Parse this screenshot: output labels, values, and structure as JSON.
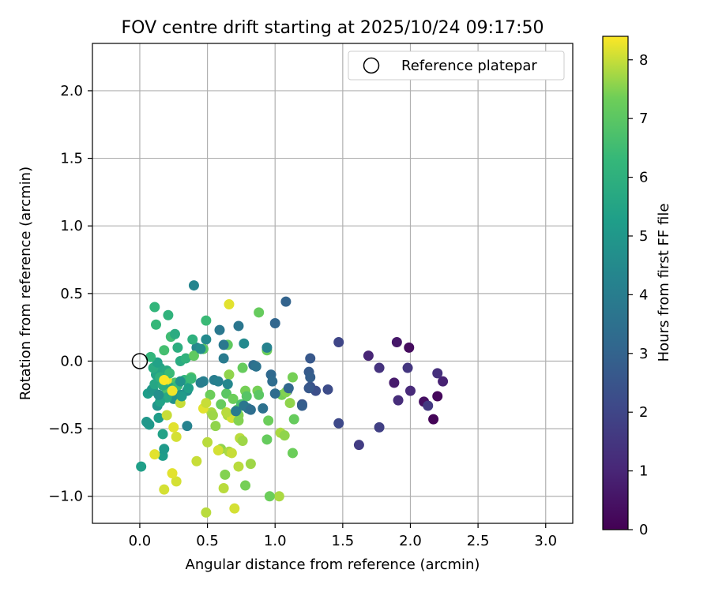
{
  "chart_data": {
    "type": "scatter",
    "title": "FOV centre drift starting at 2025/10/24 09:17:50",
    "xlabel": "Angular distance from reference (arcmin)",
    "ylabel": "Rotation from reference (arcmin)",
    "xlim": [
      -0.35,
      3.2
    ],
    "ylim": [
      -1.2,
      2.35
    ],
    "xticks": [
      0.0,
      0.5,
      1.0,
      1.5,
      2.0,
      2.5,
      3.0
    ],
    "xtick_labels": [
      "0.0",
      "0.5",
      "1.0",
      "1.5",
      "2.0",
      "2.5",
      "3.0"
    ],
    "yticks": [
      -1.0,
      -0.5,
      0.0,
      0.5,
      1.0,
      1.5,
      2.0
    ],
    "ytick_labels": [
      "−1.0",
      "−0.5",
      "0.0",
      "0.5",
      "1.0",
      "1.5",
      "2.0"
    ],
    "grid": true,
    "legend": {
      "position": "top-right",
      "entries": [
        "Reference platepar"
      ]
    },
    "reference_point": {
      "x": 0.0,
      "y": 0.0,
      "label": "Reference platepar"
    },
    "colorbar": {
      "label": "Hours from first FF file",
      "range": [
        0,
        8.4
      ],
      "ticks": [
        0,
        1,
        2,
        3,
        4,
        5,
        6,
        7,
        8
      ],
      "tick_labels": [
        "0",
        "1",
        "2",
        "3",
        "4",
        "5",
        "6",
        "7",
        "8"
      ],
      "colormap": "viridis"
    },
    "points": [
      {
        "x": 2.17,
        "y": -0.43,
        "h": 0.1
      },
      {
        "x": 2.2,
        "y": -0.26,
        "h": 0.2
      },
      {
        "x": 1.99,
        "y": 0.1,
        "h": 0.3
      },
      {
        "x": 2.1,
        "y": -0.3,
        "h": 0.4
      },
      {
        "x": 1.9,
        "y": 0.14,
        "h": 0.6
      },
      {
        "x": 1.88,
        "y": -0.16,
        "h": 0.7
      },
      {
        "x": 2.24,
        "y": -0.15,
        "h": 0.9
      },
      {
        "x": 1.69,
        "y": 0.04,
        "h": 1.0
      },
      {
        "x": 2.0,
        "y": -0.22,
        "h": 1.1
      },
      {
        "x": 1.91,
        "y": -0.29,
        "h": 1.2
      },
      {
        "x": 2.2,
        "y": -0.09,
        "h": 1.3
      },
      {
        "x": 1.77,
        "y": -0.05,
        "h": 1.4
      },
      {
        "x": 1.98,
        "y": -0.05,
        "h": 1.5
      },
      {
        "x": 2.13,
        "y": -0.33,
        "h": 1.6
      },
      {
        "x": 1.62,
        "y": -0.62,
        "h": 1.7
      },
      {
        "x": 1.77,
        "y": -0.49,
        "h": 1.8
      },
      {
        "x": 1.47,
        "y": 0.14,
        "h": 2.0
      },
      {
        "x": 1.47,
        "y": -0.46,
        "h": 2.1
      },
      {
        "x": 1.39,
        "y": -0.21,
        "h": 2.2
      },
      {
        "x": 1.3,
        "y": -0.22,
        "h": 2.3
      },
      {
        "x": 1.26,
        "y": -0.19,
        "h": 2.4
      },
      {
        "x": 1.2,
        "y": -0.32,
        "h": 2.5
      },
      {
        "x": 1.26,
        "y": 0.02,
        "h": 2.6
      },
      {
        "x": 1.25,
        "y": -0.08,
        "h": 2.7
      },
      {
        "x": 1.26,
        "y": -0.12,
        "h": 2.8
      },
      {
        "x": 1.09,
        "y": -0.22,
        "h": 2.9
      },
      {
        "x": 1.08,
        "y": 0.44,
        "h": 3.0
      },
      {
        "x": 1.0,
        "y": 0.28,
        "h": 3.1
      },
      {
        "x": 0.97,
        "y": -0.1,
        "h": 3.2
      },
      {
        "x": 0.98,
        "y": -0.15,
        "h": 3.3
      },
      {
        "x": 0.84,
        "y": -0.03,
        "h": 3.4
      },
      {
        "x": 0.91,
        "y": -0.35,
        "h": 3.5
      },
      {
        "x": 0.8,
        "y": -0.35,
        "h": 3.6
      },
      {
        "x": 0.73,
        "y": 0.26,
        "h": 3.7
      },
      {
        "x": 0.59,
        "y": 0.23,
        "h": 3.8
      },
      {
        "x": 0.62,
        "y": 0.02,
        "h": 3.9
      },
      {
        "x": 0.55,
        "y": -0.14,
        "h": 4.0
      },
      {
        "x": 0.47,
        "y": -0.15,
        "h": 4.1
      },
      {
        "x": 0.35,
        "y": -0.48,
        "h": 4.2
      },
      {
        "x": 0.4,
        "y": 0.56,
        "h": 4.3
      },
      {
        "x": 0.42,
        "y": 0.1,
        "h": 4.4
      },
      {
        "x": 0.49,
        "y": 0.16,
        "h": 4.5
      },
      {
        "x": 0.35,
        "y": -0.22,
        "h": 4.6
      },
      {
        "x": 0.3,
        "y": -0.25,
        "h": 4.7
      },
      {
        "x": 0.25,
        "y": -0.28,
        "h": 4.8
      },
      {
        "x": 0.13,
        "y": -0.33,
        "h": 4.9
      },
      {
        "x": 0.05,
        "y": -0.45,
        "h": 5.0
      },
      {
        "x": 0.07,
        "y": -0.47,
        "h": 5.1
      },
      {
        "x": 0.17,
        "y": -0.7,
        "h": 5.2
      },
      {
        "x": 0.01,
        "y": -0.78,
        "h": 5.3
      },
      {
        "x": 0.17,
        "y": -0.54,
        "h": 5.4
      },
      {
        "x": 0.1,
        "y": -0.22,
        "h": 5.5
      },
      {
        "x": 0.15,
        "y": -0.05,
        "h": 5.6
      },
      {
        "x": 0.2,
        "y": -0.07,
        "h": 5.7
      },
      {
        "x": 0.3,
        "y": 0.0,
        "h": 5.8
      },
      {
        "x": 0.28,
        "y": 0.1,
        "h": 5.9
      },
      {
        "x": 0.39,
        "y": 0.16,
        "h": 6.0
      },
      {
        "x": 0.21,
        "y": 0.34,
        "h": 6.1
      },
      {
        "x": 0.11,
        "y": 0.4,
        "h": 6.2
      },
      {
        "x": 0.12,
        "y": 0.27,
        "h": 6.3
      },
      {
        "x": 0.49,
        "y": 0.3,
        "h": 6.4
      },
      {
        "x": 0.23,
        "y": 0.18,
        "h": 6.5
      },
      {
        "x": 0.18,
        "y": 0.08,
        "h": 6.6
      },
      {
        "x": 0.2,
        "y": -0.22,
        "h": 6.7
      },
      {
        "x": 0.26,
        "y": -0.16,
        "h": 6.8
      },
      {
        "x": 0.38,
        "y": -0.12,
        "h": 6.9
      },
      {
        "x": 0.47,
        "y": 0.09,
        "h": 7.0
      },
      {
        "x": 0.65,
        "y": 0.12,
        "h": 7.1
      },
      {
        "x": 0.88,
        "y": 0.36,
        "h": 7.2
      },
      {
        "x": 0.94,
        "y": 0.08,
        "h": 7.3
      },
      {
        "x": 0.78,
        "y": -0.22,
        "h": 7.4
      },
      {
        "x": 0.73,
        "y": -0.4,
        "h": 7.5
      },
      {
        "x": 0.6,
        "y": -0.65,
        "h": 7.6
      },
      {
        "x": 0.82,
        "y": -0.76,
        "h": 7.7
      },
      {
        "x": 1.03,
        "y": -1.0,
        "h": 7.8
      },
      {
        "x": 0.49,
        "y": -1.12,
        "h": 7.9
      },
      {
        "x": 0.3,
        "y": -0.31,
        "h": 8.0
      },
      {
        "x": 0.18,
        "y": -0.95,
        "h": 8.1
      },
      {
        "x": 0.11,
        "y": -0.69,
        "h": 8.2
      },
      {
        "x": 0.2,
        "y": -0.14,
        "h": 8.3
      },
      {
        "x": 0.06,
        "y": -0.24,
        "h": 5.2
      },
      {
        "x": 0.09,
        "y": -0.21,
        "h": 5.0
      },
      {
        "x": 0.11,
        "y": -0.17,
        "h": 5.6
      },
      {
        "x": 0.12,
        "y": -0.1,
        "h": 5.5
      },
      {
        "x": 0.1,
        "y": -0.05,
        "h": 5.8
      },
      {
        "x": 0.13,
        "y": -0.01,
        "h": 5.4
      },
      {
        "x": 0.15,
        "y": -0.12,
        "h": 6.0
      },
      {
        "x": 0.17,
        "y": -0.18,
        "h": 5.9
      },
      {
        "x": 0.2,
        "y": -0.27,
        "h": 5.7
      },
      {
        "x": 0.24,
        "y": -0.2,
        "h": 5.6
      },
      {
        "x": 0.28,
        "y": -0.18,
        "h": 6.3
      },
      {
        "x": 0.31,
        "y": -0.26,
        "h": 5.1
      },
      {
        "x": 0.33,
        "y": -0.14,
        "h": 6.2
      },
      {
        "x": 0.36,
        "y": -0.2,
        "h": 5.3
      },
      {
        "x": 0.14,
        "y": -0.42,
        "h": 5.2
      },
      {
        "x": 0.18,
        "y": -0.65,
        "h": 5.1
      },
      {
        "x": 0.26,
        "y": 0.2,
        "h": 5.8
      },
      {
        "x": 0.08,
        "y": 0.03,
        "h": 6.2
      },
      {
        "x": 0.22,
        "y": -0.09,
        "h": 6.4
      },
      {
        "x": 0.15,
        "y": -0.3,
        "h": 5.4
      },
      {
        "x": 0.34,
        "y": 0.02,
        "h": 6.1
      },
      {
        "x": 0.4,
        "y": 0.04,
        "h": 7.1
      },
      {
        "x": 0.52,
        "y": -0.25,
        "h": 7.3
      },
      {
        "x": 0.6,
        "y": -0.32,
        "h": 7.2
      },
      {
        "x": 0.64,
        "y": -0.24,
        "h": 7.0
      },
      {
        "x": 0.72,
        "y": -0.36,
        "h": 7.1
      },
      {
        "x": 0.76,
        "y": -0.05,
        "h": 7.2
      },
      {
        "x": 0.79,
        "y": -0.26,
        "h": 6.9
      },
      {
        "x": 0.87,
        "y": -0.22,
        "h": 7.4
      },
      {
        "x": 0.88,
        "y": -0.25,
        "h": 7.0
      },
      {
        "x": 0.95,
        "y": -0.44,
        "h": 7.3
      },
      {
        "x": 0.94,
        "y": -0.58,
        "h": 7.2
      },
      {
        "x": 1.05,
        "y": -0.25,
        "h": 7.4
      },
      {
        "x": 1.08,
        "y": -0.23,
        "h": 7.5
      },
      {
        "x": 1.11,
        "y": -0.31,
        "h": 7.6
      },
      {
        "x": 1.13,
        "y": -0.12,
        "h": 7.4
      },
      {
        "x": 1.14,
        "y": -0.43,
        "h": 7.2
      },
      {
        "x": 1.13,
        "y": -0.68,
        "h": 7.3
      },
      {
        "x": 1.04,
        "y": -0.53,
        "h": 7.8
      },
      {
        "x": 1.07,
        "y": -0.55,
        "h": 7.6
      },
      {
        "x": 0.96,
        "y": -1.0,
        "h": 7.3
      },
      {
        "x": 0.78,
        "y": -0.92,
        "h": 7.4
      },
      {
        "x": 0.74,
        "y": -0.57,
        "h": 7.9
      },
      {
        "x": 0.76,
        "y": -0.59,
        "h": 7.7
      },
      {
        "x": 0.66,
        "y": -0.67,
        "h": 7.8
      },
      {
        "x": 0.68,
        "y": -0.68,
        "h": 8.0
      },
      {
        "x": 0.73,
        "y": -0.78,
        "h": 7.9
      },
      {
        "x": 0.7,
        "y": -1.09,
        "h": 8.1
      },
      {
        "x": 0.62,
        "y": -0.94,
        "h": 7.9
      },
      {
        "x": 0.63,
        "y": -0.84,
        "h": 7.5
      },
      {
        "x": 0.58,
        "y": -0.66,
        "h": 8.1
      },
      {
        "x": 0.56,
        "y": -0.48,
        "h": 7.6
      },
      {
        "x": 0.53,
        "y": -0.38,
        "h": 7.8
      },
      {
        "x": 0.54,
        "y": -0.4,
        "h": 7.7
      },
      {
        "x": 0.5,
        "y": -0.6,
        "h": 7.9
      },
      {
        "x": 0.47,
        "y": -0.35,
        "h": 8.2
      },
      {
        "x": 0.49,
        "y": -0.31,
        "h": 8.0
      },
      {
        "x": 0.42,
        "y": -0.74,
        "h": 8.0
      },
      {
        "x": 0.27,
        "y": -0.89,
        "h": 8.1
      },
      {
        "x": 0.24,
        "y": -0.83,
        "h": 8.2
      },
      {
        "x": 0.27,
        "y": -0.56,
        "h": 8.1
      },
      {
        "x": 0.25,
        "y": -0.49,
        "h": 8.2
      },
      {
        "x": 0.2,
        "y": -0.4,
        "h": 8.0
      },
      {
        "x": 0.24,
        "y": -0.22,
        "h": 8.3
      },
      {
        "x": 0.18,
        "y": -0.14,
        "h": 8.4
      },
      {
        "x": 0.66,
        "y": 0.42,
        "h": 8.2
      },
      {
        "x": 0.65,
        "y": -0.4,
        "h": 7.8
      },
      {
        "x": 0.68,
        "y": -0.42,
        "h": 8.1
      },
      {
        "x": 0.64,
        "y": -0.38,
        "h": 7.9
      },
      {
        "x": 0.66,
        "y": -0.1,
        "h": 7.6
      },
      {
        "x": 0.73,
        "y": -0.44,
        "h": 7.5
      },
      {
        "x": 0.69,
        "y": -0.28,
        "h": 7.3
      },
      {
        "x": 0.75,
        "y": -0.32,
        "h": 6.7
      },
      {
        "x": 0.77,
        "y": 0.13,
        "h": 4.5
      },
      {
        "x": 0.71,
        "y": -0.37,
        "h": 3.9
      },
      {
        "x": 0.77,
        "y": -0.33,
        "h": 3.7
      },
      {
        "x": 0.86,
        "y": -0.04,
        "h": 3.6
      },
      {
        "x": 0.94,
        "y": 0.1,
        "h": 4.2
      },
      {
        "x": 1.1,
        "y": -0.2,
        "h": 3.1
      },
      {
        "x": 1.2,
        "y": -0.33,
        "h": 2.8
      },
      {
        "x": 1.25,
        "y": -0.2,
        "h": 2.6
      },
      {
        "x": 1.0,
        "y": -0.24,
        "h": 3.3
      },
      {
        "x": 0.82,
        "y": -0.36,
        "h": 3.4
      },
      {
        "x": 0.45,
        "y": -0.16,
        "h": 4.0
      },
      {
        "x": 0.62,
        "y": 0.12,
        "h": 3.8
      },
      {
        "x": 0.58,
        "y": -0.15,
        "h": 4.1
      },
      {
        "x": 0.65,
        "y": -0.17,
        "h": 4.4
      },
      {
        "x": 0.45,
        "y": 0.09,
        "h": 4.6
      },
      {
        "x": 0.3,
        "y": -0.15,
        "h": 4.8
      },
      {
        "x": 0.14,
        "y": -0.25,
        "h": 4.7
      },
      {
        "x": 0.06,
        "y": -0.46,
        "h": 5.0
      },
      {
        "x": 0.38,
        "y": -0.13,
        "h": 6.4
      }
    ]
  }
}
